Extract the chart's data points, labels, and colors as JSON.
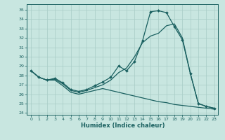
{
  "xlabel": "Humidex (Indice chaleur)",
  "bg_color": "#c8e6e0",
  "line_color": "#1a6060",
  "xlim": [
    -0.5,
    23.5
  ],
  "ylim": [
    23.8,
    35.6
  ],
  "yticks": [
    24,
    25,
    26,
    27,
    28,
    29,
    30,
    31,
    32,
    33,
    34,
    35
  ],
  "xticks": [
    0,
    1,
    2,
    3,
    4,
    5,
    6,
    7,
    8,
    9,
    10,
    11,
    12,
    13,
    14,
    15,
    16,
    17,
    18,
    19,
    20,
    21,
    22,
    23
  ],
  "line1_x": [
    0,
    1,
    2,
    3,
    4,
    5,
    6,
    7,
    8,
    9,
    10,
    11,
    12,
    13,
    14,
    15,
    16,
    17,
    18,
    19,
    20,
    21,
    22,
    23
  ],
  "line1_y": [
    28.5,
    27.8,
    27.5,
    27.7,
    27.2,
    26.5,
    26.3,
    26.5,
    26.9,
    27.3,
    27.8,
    29.0,
    28.5,
    29.5,
    31.7,
    34.8,
    34.9,
    34.7,
    33.2,
    31.8,
    28.2,
    25.0,
    24.7,
    24.5
  ],
  "line2_x": [
    0,
    1,
    2,
    3,
    4,
    5,
    6,
    7,
    8,
    9,
    10,
    11,
    12,
    13,
    14,
    15,
    16,
    17,
    18,
    19,
    20,
    21,
    22,
    23
  ],
  "line2_y": [
    28.5,
    27.8,
    27.5,
    27.6,
    27.1,
    26.4,
    26.2,
    26.4,
    26.7,
    27.0,
    27.5,
    28.3,
    28.8,
    30.0,
    31.5,
    32.2,
    32.5,
    33.3,
    33.5,
    32.0,
    28.2,
    25.0,
    24.7,
    24.5
  ],
  "line3_x": [
    0,
    1,
    2,
    3,
    4,
    5,
    6,
    7,
    8,
    9,
    10,
    11,
    12,
    13,
    14,
    15,
    16,
    17,
    18,
    19,
    20,
    21,
    22,
    23
  ],
  "line3_y": [
    28.5,
    27.8,
    27.5,
    27.5,
    26.9,
    26.2,
    26.0,
    26.2,
    26.4,
    26.6,
    26.4,
    26.2,
    26.0,
    25.8,
    25.6,
    25.4,
    25.2,
    25.1,
    24.9,
    24.8,
    24.7,
    24.6,
    24.5,
    24.4
  ]
}
